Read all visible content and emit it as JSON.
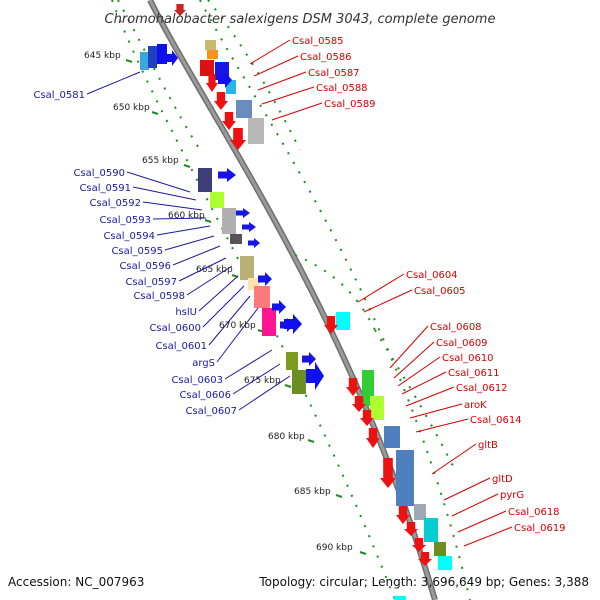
{
  "title": "Chromohalobacter salexigens DSM 3043, complete genome",
  "footer": {
    "accession": "Accession: NC_007963",
    "summary": "Topology: circular; Length: 3,696,649 bp; Genes: 3,388"
  },
  "colors": {
    "backbone": "#9a9a9a",
    "ticks": "#1e8c1e",
    "label_red": "#d40000",
    "label_blue": "#1a1aa0"
  },
  "axis": {
    "unit": "kbp",
    "ticks": [
      {
        "label": "645 kbp"
      },
      {
        "label": "650 kbp"
      },
      {
        "label": "655 kbp"
      },
      {
        "label": "660 kbp"
      },
      {
        "label": "665 kbp"
      },
      {
        "label": "670 kbp"
      },
      {
        "label": "675 kbp"
      },
      {
        "label": "680 kbp"
      },
      {
        "label": "685 kbp"
      },
      {
        "label": "690 kbp"
      }
    ]
  },
  "genes_right": [
    {
      "name": "Csal_0585"
    },
    {
      "name": "Csal_0586"
    },
    {
      "name": "Csal_0587"
    },
    {
      "name": "Csal_0588"
    },
    {
      "name": "Csal_0589"
    },
    {
      "name": "Csal_0604"
    },
    {
      "name": "Csal_0605"
    },
    {
      "name": "Csal_0608"
    },
    {
      "name": "Csal_0609"
    },
    {
      "name": "Csal_0610"
    },
    {
      "name": "Csal_0611"
    },
    {
      "name": "Csal_0612"
    },
    {
      "name": "aroK"
    },
    {
      "name": "Csal_0614"
    },
    {
      "name": "gltB"
    },
    {
      "name": "gltD"
    },
    {
      "name": "pyrG"
    },
    {
      "name": "Csal_0618"
    },
    {
      "name": "Csal_0619"
    }
  ],
  "genes_left": [
    {
      "name": "Csal_0581"
    },
    {
      "name": "Csal_0590"
    },
    {
      "name": "Csal_0591"
    },
    {
      "name": "Csal_0592"
    },
    {
      "name": "Csal_0593"
    },
    {
      "name": "Csal_0594"
    },
    {
      "name": "Csal_0595"
    },
    {
      "name": "Csal_0596"
    },
    {
      "name": "Csal_0597"
    },
    {
      "name": "Csal_0598"
    },
    {
      "name": "hslU"
    },
    {
      "name": "Csal_0600"
    },
    {
      "name": "Csal_0601"
    },
    {
      "name": "argS"
    },
    {
      "name": "Csal_0603"
    },
    {
      "name": "Csal_0606"
    },
    {
      "name": "Csal_0607"
    }
  ]
}
